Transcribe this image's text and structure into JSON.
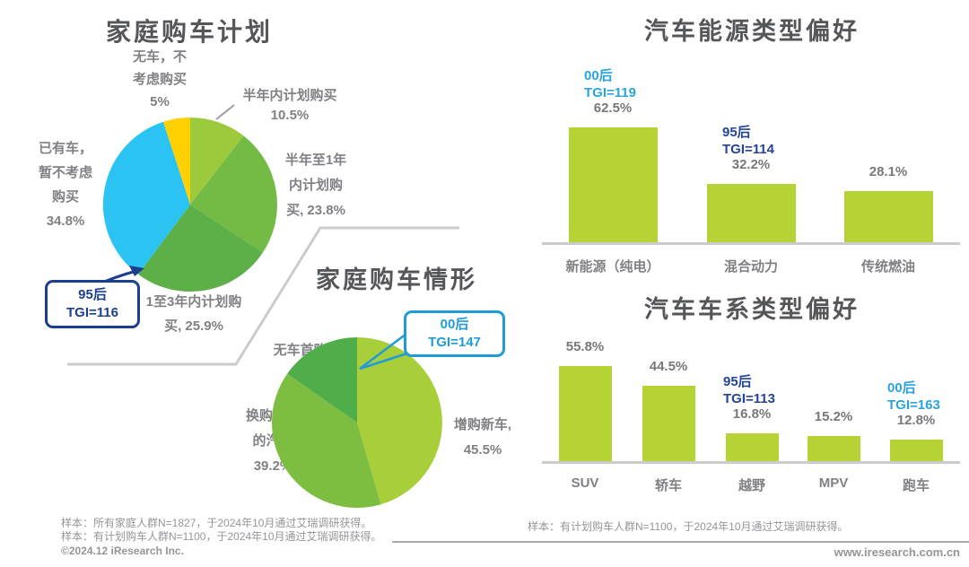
{
  "colors": {
    "title_text": "#55565A",
    "label_text": "#808184",
    "value_text": "#77787B",
    "footer_text": "#939598",
    "light_blue": "#29A4DE",
    "navy_blue": "#24449B",
    "callout_navy": "#1C3E8F",
    "callout_light_blue": "#1E9CD7",
    "bar_green": "#B5D334",
    "axis_gray": "#C9CBCD"
  },
  "chart_data": [
    {
      "id": "family-car-purchase-plan",
      "type": "pie",
      "title": "家庭购车计划",
      "unit": "%",
      "slices": [
        {
          "label": "半年内计划购买",
          "value": 10.5,
          "display": "半年内计划购买\n10.5%",
          "color": "#9CCA3C"
        },
        {
          "label": "半年至1年内计划购买",
          "value": 23.8,
          "display": "半年至1年\n内计划购\n买, 23.8%",
          "color": "#73BB44"
        },
        {
          "label": "1至3年内计划购买",
          "value": 25.9,
          "display": "1至3年内计划购\n买, 25.9%",
          "color": "#5DAF48"
        },
        {
          "label": "已有车，暂不考虑购买",
          "value": 34.8,
          "display": "已有车，\n暂不考虑\n购买\n34.8%",
          "color": "#2BC4F2"
        },
        {
          "label": "无车，不考虑购买",
          "value": 5,
          "display": "无车，不\n考虑购买\n5%",
          "color": "#FFD103"
        }
      ],
      "callout": {
        "group": "95后",
        "tgi": "TGI=116",
        "color": "#1C3E8F"
      }
    },
    {
      "id": "family-car-purchase-situation",
      "type": "pie",
      "title": "家庭购车情形",
      "unit": "%",
      "slices": [
        {
          "label": "增购新车",
          "value": 45.5,
          "display": "增购新车,\n45.5%",
          "color": "#A8CE3A"
        },
        {
          "label": "换购目前的汽车",
          "value": 39.2,
          "display": "换购目前\n的汽车\n39.2%",
          "color": "#7DBE41"
        },
        {
          "label": "无车首购",
          "value": 15.3,
          "display": "无车首购, 15.3%",
          "color": "#4FAE49"
        }
      ],
      "callout": {
        "group": "00后",
        "tgi": "TGI=147",
        "color": "#1E9CD7"
      }
    },
    {
      "id": "car-energy-type-preference",
      "type": "bar",
      "title": "汽车能源类型偏好",
      "unit": "%",
      "categories": [
        "新能源（纯电）",
        "混合动力",
        "传统燃油"
      ],
      "values": [
        62.5,
        32.2,
        28.1
      ],
      "value_labels": [
        "62.5%",
        "32.2%",
        "28.1%"
      ],
      "bar_color": "#B5D334",
      "annotations": [
        {
          "index": 0,
          "text": "00后\nTGI=119",
          "color": "#29A4DE"
        },
        {
          "index": 1,
          "text": "95后\nTGI=114",
          "color": "#24449B"
        }
      ]
    },
    {
      "id": "car-series-type-preference",
      "type": "bar",
      "title": "汽车车系类型偏好",
      "unit": "%",
      "categories": [
        "SUV",
        "轿车",
        "越野",
        "MPV",
        "跑车"
      ],
      "values": [
        55.8,
        44.5,
        16.8,
        15.2,
        12.8
      ],
      "value_labels": [
        "55.8%",
        "44.5%",
        "16.8%",
        "15.2%",
        "12.8%"
      ],
      "bar_color": "#B5D334",
      "annotations": [
        {
          "index": 2,
          "text": "95后\nTGI=113",
          "color": "#24449B"
        },
        {
          "index": 4,
          "text": "00后\nTGI=163",
          "color": "#29A4DE"
        }
      ]
    }
  ],
  "footer": {
    "left_line1": "样本：所有家庭人群N=1827，于2024年10月通过艾瑞调研获得。",
    "left_line2": "样本：有计划购车人群N=1100，于2024年10月通过艾瑞调研获得。",
    "copyright": "©2024.12 iResearch Inc.",
    "right_sample": "样本：有计划购车人群N=1100，于2024年10月通过艾瑞调研获得。",
    "website": "www.iresearch.com.cn"
  }
}
